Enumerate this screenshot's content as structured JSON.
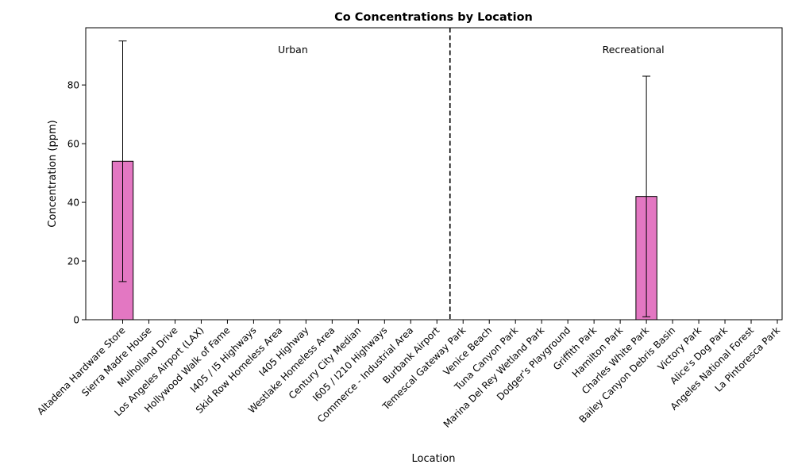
{
  "chart_data": {
    "type": "bar",
    "title": "Co Concentrations by Location",
    "xlabel": "Location",
    "ylabel": "Concentration (ppm)",
    "ylim": [
      0,
      99.5
    ],
    "yticks": [
      0,
      20,
      40,
      60,
      80
    ],
    "grid": false,
    "bar_color": "#e377c2",
    "bar_edge_color": "#000000",
    "categories": [
      "Altadena Hardware Store",
      "Sierra Madre House",
      "Mulholland Drive",
      "Los Angeles Airport (LAX)",
      "Hollywood Walk of Fame",
      "I405 / I5 Highways",
      "Skid Row Homeless Area",
      "I405 Highway",
      "Westlake Homeless Area",
      "Century City Median",
      "I605 / I210 Highways",
      "Commerce - Industrial Area",
      "Burbank Airport",
      "Temescal Gateway Park",
      "Venice Beach",
      "Tuna Canyon Park",
      "Marina Del Rey Wetland Park",
      "Dodger's Playground",
      "Griffith Park",
      "Hamilton Park",
      "Charles White Park",
      "Bailey Canyon Debris Basin",
      "Victory Park",
      "Alice's Dog Park",
      "Angeles National Forest",
      "La Pintoresca Park"
    ],
    "values": [
      54,
      0,
      0,
      0,
      0,
      0,
      0,
      0,
      0,
      0,
      0,
      0,
      0,
      0,
      0,
      0,
      0,
      0,
      0,
      0,
      42,
      0,
      0,
      0,
      0,
      0
    ],
    "error_low": [
      13,
      null,
      null,
      null,
      null,
      null,
      null,
      null,
      null,
      null,
      null,
      null,
      null,
      null,
      null,
      null,
      null,
      null,
      null,
      null,
      1,
      null,
      null,
      null,
      null,
      null
    ],
    "error_high": [
      95,
      null,
      null,
      null,
      null,
      null,
      null,
      null,
      null,
      null,
      null,
      null,
      null,
      null,
      null,
      null,
      null,
      null,
      null,
      null,
      83,
      null,
      null,
      null,
      null,
      null
    ],
    "divider_after_index": 12.5,
    "annotations": [
      {
        "text": "Urban",
        "x_index": 6.5,
        "y": 92
      },
      {
        "text": "Recreational",
        "x_index": 19.5,
        "y": 92
      }
    ]
  }
}
